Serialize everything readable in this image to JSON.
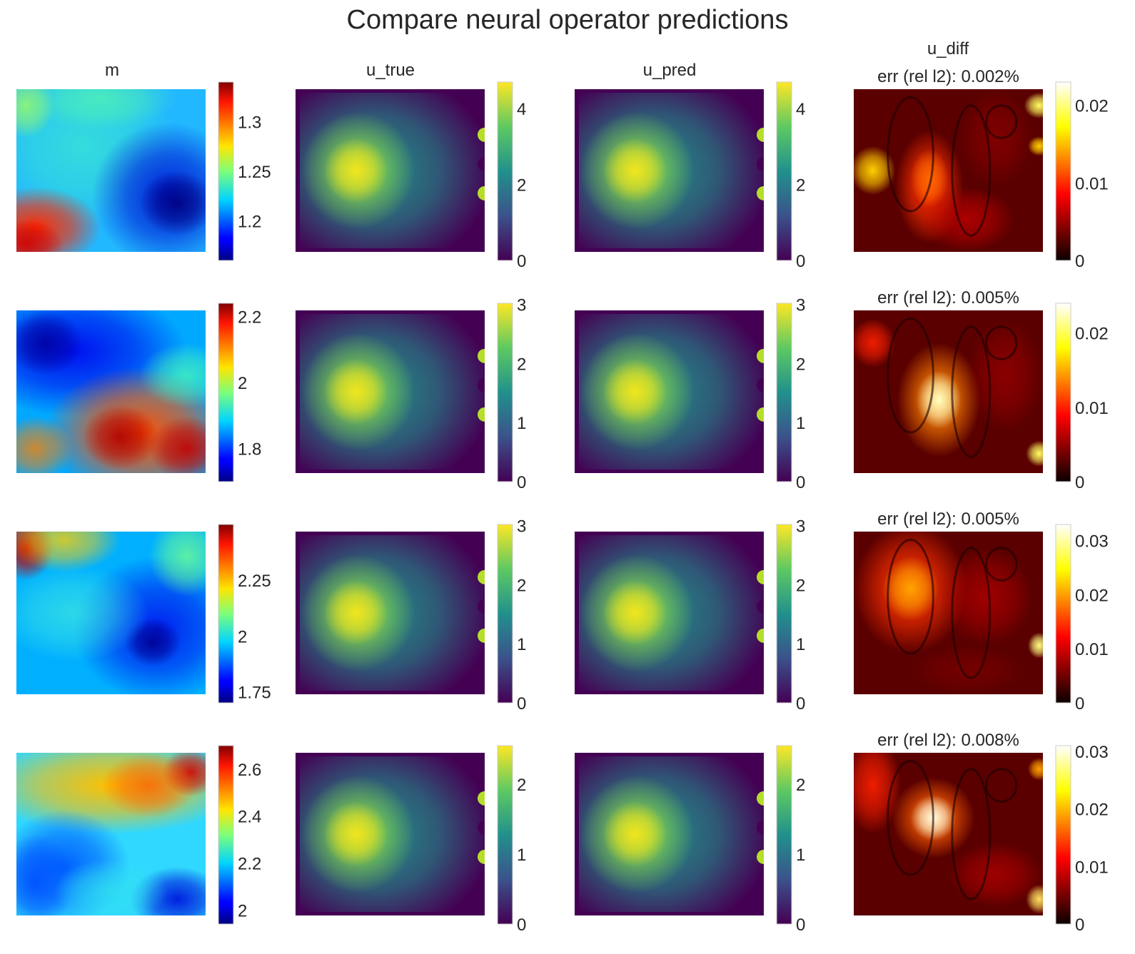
{
  "figure": {
    "title": "Compare neural operator predictions"
  },
  "columns": [
    {
      "key": "m",
      "title": "m"
    },
    {
      "key": "u_true",
      "title": "u_true"
    },
    {
      "key": "u_pred",
      "title": "u_pred"
    },
    {
      "key": "u_diff",
      "title": "u_diff"
    }
  ],
  "colormaps": {
    "m": "jet",
    "u_true": "viridis",
    "u_pred": "viridis",
    "u_diff": "hot"
  },
  "chart_data": [
    {
      "type": "heatmap",
      "row": 1,
      "panels": [
        {
          "column": "m",
          "title": "",
          "colorbar": {
            "min": 1.16,
            "max": 1.34,
            "ticks": [
              1.2,
              1.25,
              1.3
            ],
            "tick_labels": [
              "1.2",
              "1.25",
              "1.3"
            ]
          }
        },
        {
          "column": "u_true",
          "title": "",
          "colorbar": {
            "min": 0,
            "max": 4.7,
            "ticks": [
              0,
              2,
              4
            ],
            "tick_labels": [
              "0",
              "2",
              "4"
            ]
          }
        },
        {
          "column": "u_pred",
          "title": "",
          "colorbar": {
            "min": 0,
            "max": 4.7,
            "ticks": [
              0,
              2,
              4
            ],
            "tick_labels": [
              "0",
              "2",
              "4"
            ]
          }
        },
        {
          "column": "u_diff",
          "title": "err (rel l2): 0.002%",
          "colorbar": {
            "min": 0,
            "max": 0.023,
            "ticks": [
              0,
              0.01,
              0.02
            ],
            "tick_labels": [
              "0",
              "0.01",
              "0.02"
            ]
          }
        }
      ]
    },
    {
      "type": "heatmap",
      "row": 2,
      "panels": [
        {
          "column": "m",
          "title": "",
          "colorbar": {
            "min": 1.7,
            "max": 2.24,
            "ticks": [
              1.8,
              2,
              2.2
            ],
            "tick_labels": [
              "1.8",
              "2",
              "2.2"
            ]
          }
        },
        {
          "column": "u_true",
          "title": "",
          "colorbar": {
            "min": 0,
            "max": 3.02,
            "ticks": [
              0,
              1,
              2,
              3
            ],
            "tick_labels": [
              "0",
              "1",
              "2",
              "3"
            ]
          }
        },
        {
          "column": "u_pred",
          "title": "",
          "colorbar": {
            "min": 0,
            "max": 3.02,
            "ticks": [
              0,
              1,
              2,
              3
            ],
            "tick_labels": [
              "0",
              "1",
              "2",
              "3"
            ]
          }
        },
        {
          "column": "u_diff",
          "title": "err (rel l2): 0.005%",
          "colorbar": {
            "min": 0,
            "max": 0.024,
            "ticks": [
              0,
              0.01,
              0.02
            ],
            "tick_labels": [
              "0",
              "0.01",
              "0.02"
            ]
          }
        }
      ]
    },
    {
      "type": "heatmap",
      "row": 3,
      "panels": [
        {
          "column": "m",
          "title": "",
          "colorbar": {
            "min": 1.7,
            "max": 2.5,
            "ticks": [
              1.75,
              2,
              2.25
            ],
            "tick_labels": [
              "1.75",
              "2",
              "2.25"
            ]
          }
        },
        {
          "column": "u_true",
          "title": "",
          "colorbar": {
            "min": 0,
            "max": 3.02,
            "ticks": [
              0,
              1,
              2,
              3
            ],
            "tick_labels": [
              "0",
              "1",
              "2",
              "3"
            ]
          }
        },
        {
          "column": "u_pred",
          "title": "",
          "colorbar": {
            "min": 0,
            "max": 3.02,
            "ticks": [
              0,
              1,
              2,
              3
            ],
            "tick_labels": [
              "0",
              "1",
              "2",
              "3"
            ]
          }
        },
        {
          "column": "u_diff",
          "title": "err (rel l2): 0.005%",
          "colorbar": {
            "min": 0,
            "max": 0.033,
            "ticks": [
              0,
              0.01,
              0.02,
              0.03
            ],
            "tick_labels": [
              "0",
              "0.01",
              "0.02",
              "0.03"
            ]
          }
        }
      ]
    },
    {
      "type": "heatmap",
      "row": 4,
      "panels": [
        {
          "column": "m",
          "title": "",
          "colorbar": {
            "min": 1.94,
            "max": 2.7,
            "ticks": [
              2,
              2.2,
              2.4,
              2.6
            ],
            "tick_labels": [
              "2",
              "2.2",
              "2.4",
              "2.6"
            ]
          }
        },
        {
          "column": "u_true",
          "title": "",
          "colorbar": {
            "min": 0,
            "max": 2.55,
            "ticks": [
              0,
              1,
              2
            ],
            "tick_labels": [
              "0",
              "1",
              "2"
            ]
          }
        },
        {
          "column": "u_pred",
          "title": "",
          "colorbar": {
            "min": 0,
            "max": 2.55,
            "ticks": [
              0,
              1,
              2
            ],
            "tick_labels": [
              "0",
              "1",
              "2"
            ]
          }
        },
        {
          "column": "u_diff",
          "title": "err (rel l2): 0.008%",
          "colorbar": {
            "min": 0,
            "max": 0.031,
            "ticks": [
              0,
              0.01,
              0.02,
              0.03
            ],
            "tick_labels": [
              "0",
              "0.01",
              "0.02",
              "0.03"
            ]
          }
        }
      ]
    }
  ]
}
